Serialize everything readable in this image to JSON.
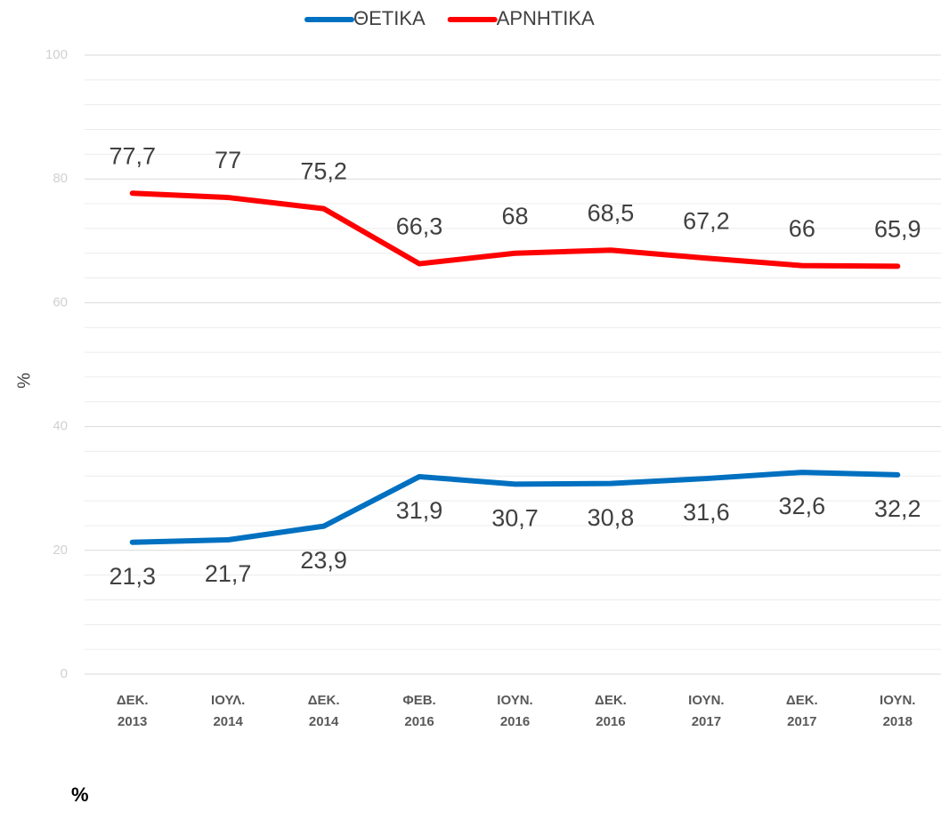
{
  "chart_data": {
    "type": "line",
    "y_axis_label": "%",
    "footer": "%",
    "categories": [
      "ΔΕΚ. 2013",
      "ΙΟΥΛ. 2014",
      "ΔΕΚ. 2014",
      "ΦΕΒ. 2016",
      "ΙΟΥΝ. 2016",
      "ΔΕΚ. 2016",
      "ΙΟΥΝ. 2017",
      "ΔΕΚ. 2017",
      "ΙΟΥΝ. 2018"
    ],
    "series": [
      {
        "name": "ΘΕΤΙΚΑ",
        "color": "#0070c0",
        "values": [
          21.3,
          21.7,
          23.9,
          31.9,
          30.7,
          30.8,
          31.6,
          32.6,
          32.2
        ],
        "value_labels": [
          "21,3",
          "21,7",
          "23,9",
          "31,9",
          "30,7",
          "30,8",
          "31,6",
          "32,6",
          "32,2"
        ]
      },
      {
        "name": "ΑΡΝΗΤΙΚΑ",
        "color": "#ff0000",
        "values": [
          77.7,
          77,
          75.2,
          66.3,
          68,
          68.5,
          67.2,
          66,
          65.9
        ],
        "value_labels": [
          "77,7",
          "77",
          "75,2",
          "66,3",
          "68",
          "68,5",
          "67,2",
          "66",
          "65,9"
        ]
      }
    ],
    "ylim": [
      0,
      100
    ],
    "yticks": [
      0,
      20,
      40,
      60,
      80,
      100
    ],
    "minor_yticks": [
      4,
      8,
      12,
      16,
      24,
      28,
      32,
      36,
      44,
      48,
      52,
      56,
      64,
      68,
      72,
      76,
      84,
      88,
      92,
      96
    ],
    "grid": true,
    "legend": "top"
  }
}
